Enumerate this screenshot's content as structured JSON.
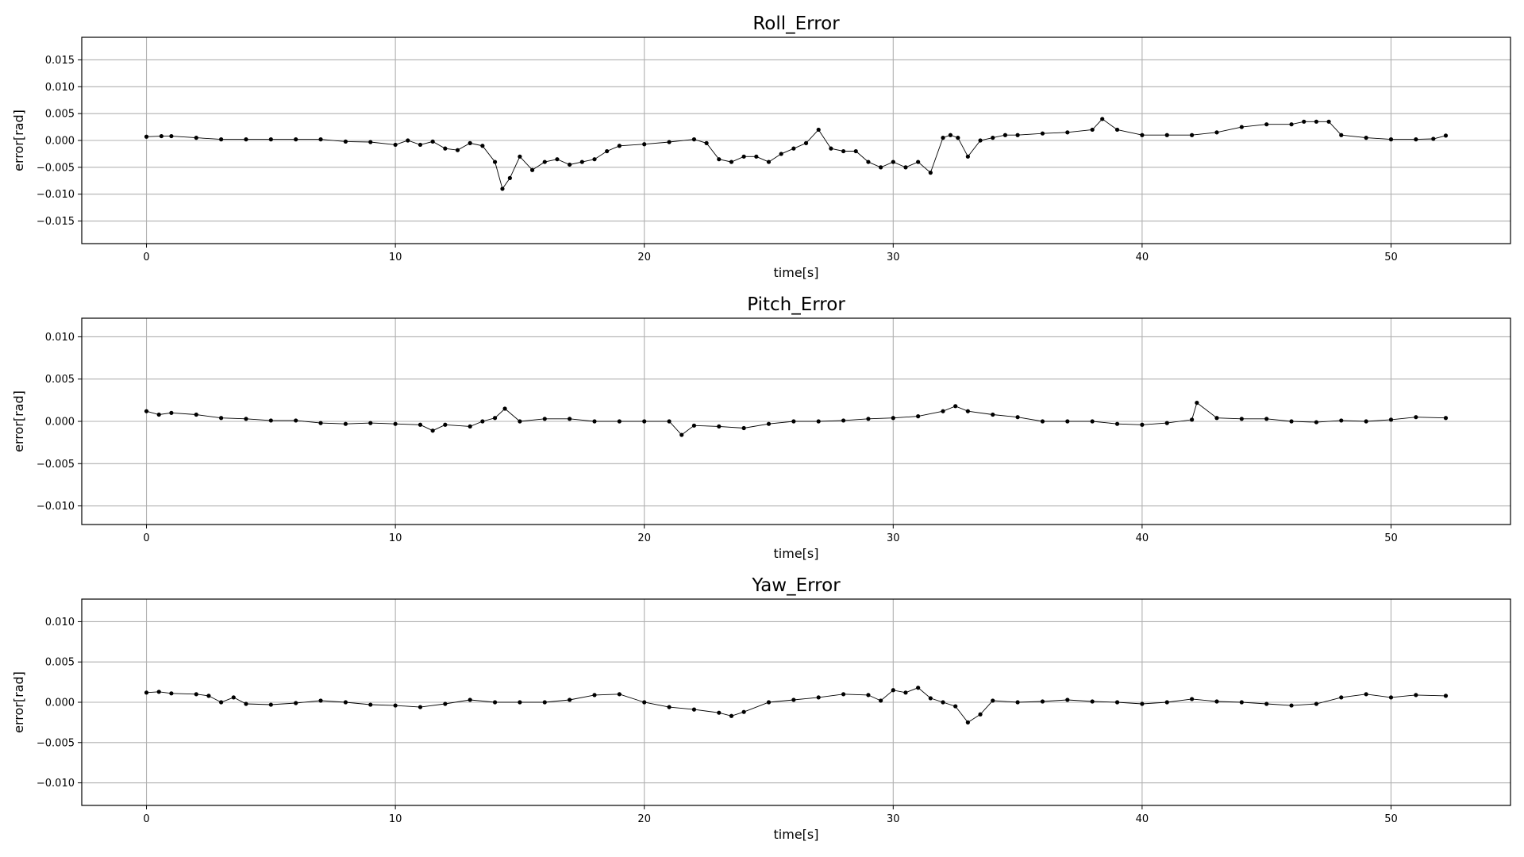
{
  "chart_data": [
    {
      "type": "line",
      "title": "Roll_Error",
      "xlabel": "time[s]",
      "ylabel": "error[rad]",
      "xlim": [
        -2.6,
        54.8
      ],
      "ylim": [
        -0.0192,
        0.0192
      ],
      "xticks": [
        0,
        10,
        20,
        30,
        40,
        50
      ],
      "xtick_labels": [
        "0",
        "10",
        "20",
        "30",
        "40",
        "50"
      ],
      "yticks": [
        -0.015,
        -0.01,
        -0.005,
        0.0,
        0.005,
        0.01,
        0.015
      ],
      "ytick_labels": [
        "−0.015",
        "−0.010",
        "−0.005",
        "0.000",
        "0.005",
        "0.010",
        "0.015"
      ],
      "grid": true,
      "marker": "dot",
      "color": "#000000",
      "series": [
        {
          "x": [
            0,
            0.6,
            1,
            2,
            3,
            4,
            5,
            6,
            7,
            8,
            9,
            10,
            10.5,
            11,
            11.5,
            12,
            12.5,
            13,
            13.5,
            14,
            14.3,
            14.6,
            15,
            15.5,
            16,
            16.5,
            17,
            17.5,
            18,
            18.5,
            19,
            20,
            21,
            22,
            22.5,
            23,
            23.5,
            24,
            24.5,
            25,
            25.5,
            26,
            26.5,
            27,
            27.5,
            28,
            28.5,
            29,
            29.5,
            30,
            30.5,
            31,
            31.5,
            32,
            32.3,
            32.6,
            33,
            33.5,
            34,
            34.5,
            35,
            36,
            37,
            38,
            38.4,
            39,
            40,
            41,
            42,
            43,
            44,
            45,
            46,
            46.5,
            47,
            47.5,
            48,
            49,
            50,
            51,
            51.7,
            52.2
          ],
          "y": [
            0.0007,
            0.0008,
            0.0008,
            0.0005,
            0.0002,
            0.0002,
            0.0002,
            0.0002,
            0.0002,
            -0.0002,
            -0.0003,
            -0.0008,
            0,
            -0.0008,
            -0.0002,
            -0.0015,
            -0.0018,
            -0.0005,
            -0.001,
            -0.004,
            -0.009,
            -0.007,
            -0.003,
            -0.0055,
            -0.004,
            -0.0035,
            -0.0045,
            -0.004,
            -0.0035,
            -0.002,
            -0.001,
            -0.0007,
            -0.0003,
            0.0002,
            -0.0005,
            -0.0035,
            -0.004,
            -0.003,
            -0.003,
            -0.004,
            -0.0025,
            -0.0015,
            -0.0005,
            0.002,
            -0.0015,
            -0.002,
            -0.002,
            -0.004,
            -0.005,
            -0.004,
            -0.005,
            -0.004,
            -0.006,
            0.0005,
            0.001,
            0.0005,
            -0.003,
            0,
            0.0005,
            0.001,
            0.001,
            0.0013,
            0.0015,
            0.002,
            0.004,
            0.002,
            0.001,
            0.001,
            0.001,
            0.0015,
            0.0025,
            0.003,
            0.003,
            0.0035,
            0.0035,
            0.0035,
            0.001,
            0.0005,
            0.0002,
            0.0002,
            0.0003,
            0.0009
          ]
        }
      ]
    },
    {
      "type": "line",
      "title": "Pitch_Error",
      "xlabel": "time[s]",
      "ylabel": "error[rad]",
      "xlim": [
        -2.6,
        54.8
      ],
      "ylim": [
        -0.0122,
        0.0122
      ],
      "xticks": [
        0,
        10,
        20,
        30,
        40,
        50
      ],
      "xtick_labels": [
        "0",
        "10",
        "20",
        "30",
        "40",
        "50"
      ],
      "yticks": [
        -0.01,
        -0.005,
        0.0,
        0.005,
        0.01
      ],
      "ytick_labels": [
        "−0.010",
        "−0.005",
        "0.000",
        "0.005",
        "0.010"
      ],
      "grid": true,
      "marker": "dot",
      "color": "#000000",
      "series": [
        {
          "x": [
            0,
            0.5,
            1,
            2,
            3,
            4,
            5,
            6,
            7,
            8,
            9,
            10,
            11,
            11.5,
            12,
            13,
            13.5,
            14,
            14.4,
            15,
            16,
            17,
            18,
            19,
            20,
            21,
            21.5,
            22,
            23,
            24,
            25,
            26,
            27,
            28,
            29,
            30,
            31,
            32,
            32.5,
            33,
            34,
            35,
            36,
            37,
            38,
            39,
            40,
            41,
            42,
            42.2,
            43,
            44,
            45,
            46,
            47,
            48,
            49,
            50,
            51,
            52.2
          ],
          "y": [
            0.0012,
            0.0008,
            0.001,
            0.0008,
            0.0004,
            0.0003,
            0.0001,
            0.0001,
            -0.0002,
            -0.0003,
            -0.0002,
            -0.0003,
            -0.0004,
            -0.0011,
            -0.0004,
            -0.0006,
            0,
            0.0004,
            0.0015,
            0,
            0.0003,
            0.0003,
            0,
            0,
            0,
            0,
            -0.0016,
            -0.0005,
            -0.0006,
            -0.0008,
            -0.0003,
            0,
            0,
            0.0001,
            0.0003,
            0.0004,
            0.0006,
            0.0012,
            0.0018,
            0.0012,
            0.0008,
            0.0005,
            0,
            0,
            0,
            -0.0003,
            -0.0004,
            -0.0002,
            0.0002,
            0.0022,
            0.0004,
            0.0003,
            0.0003,
            0,
            -0.0001,
            0.0001,
            0,
            0.0002,
            0.0005,
            0.0004
          ]
        }
      ]
    },
    {
      "type": "line",
      "title": "Yaw_Error",
      "xlabel": "time[s]",
      "ylabel": "error[rad]",
      "xlim": [
        -2.6,
        54.8
      ],
      "ylim": [
        -0.0128,
        0.0128
      ],
      "xticks": [
        0,
        10,
        20,
        30,
        40,
        50
      ],
      "xtick_labels": [
        "0",
        "10",
        "20",
        "30",
        "40",
        "50"
      ],
      "yticks": [
        -0.01,
        -0.005,
        0.0,
        0.005,
        0.01
      ],
      "ytick_labels": [
        "−0.010",
        "−0.005",
        "0.000",
        "0.005",
        "0.010"
      ],
      "grid": true,
      "marker": "dot",
      "color": "#000000",
      "series": [
        {
          "x": [
            0,
            0.5,
            1,
            2,
            2.5,
            3,
            3.5,
            4,
            5,
            6,
            7,
            8,
            9,
            10,
            11,
            12,
            13,
            14,
            15,
            16,
            17,
            18,
            19,
            20,
            21,
            22,
            23,
            23.5,
            24,
            25,
            26,
            27,
            28,
            29,
            29.5,
            30,
            30.5,
            31,
            31.5,
            32,
            32.5,
            33,
            33.5,
            34,
            35,
            36,
            37,
            38,
            39,
            40,
            41,
            42,
            43,
            44,
            45,
            46,
            47,
            48,
            49,
            50,
            51,
            52.2
          ],
          "y": [
            0.0012,
            0.0013,
            0.0011,
            0.001,
            0.0008,
            0,
            0.0006,
            -0.0002,
            -0.0003,
            -0.0001,
            0.0002,
            0,
            -0.0003,
            -0.0004,
            -0.0006,
            -0.0002,
            0.0003,
            0,
            0,
            0,
            0.0003,
            0.0009,
            0.001,
            0,
            -0.0006,
            -0.0009,
            -0.0013,
            -0.0017,
            -0.0012,
            0,
            0.0003,
            0.0006,
            0.001,
            0.0009,
            0.0002,
            0.0015,
            0.0012,
            0.0018,
            0.0005,
            0,
            -0.0005,
            -0.0025,
            -0.0015,
            0.0002,
            0,
            0.0001,
            0.0003,
            0.0001,
            0,
            -0.0002,
            0,
            0.0004,
            0.0001,
            0,
            -0.0002,
            -0.0004,
            -0.0002,
            0.0006,
            0.001,
            0.0006,
            0.0009,
            0.0008
          ]
        }
      ]
    }
  ]
}
